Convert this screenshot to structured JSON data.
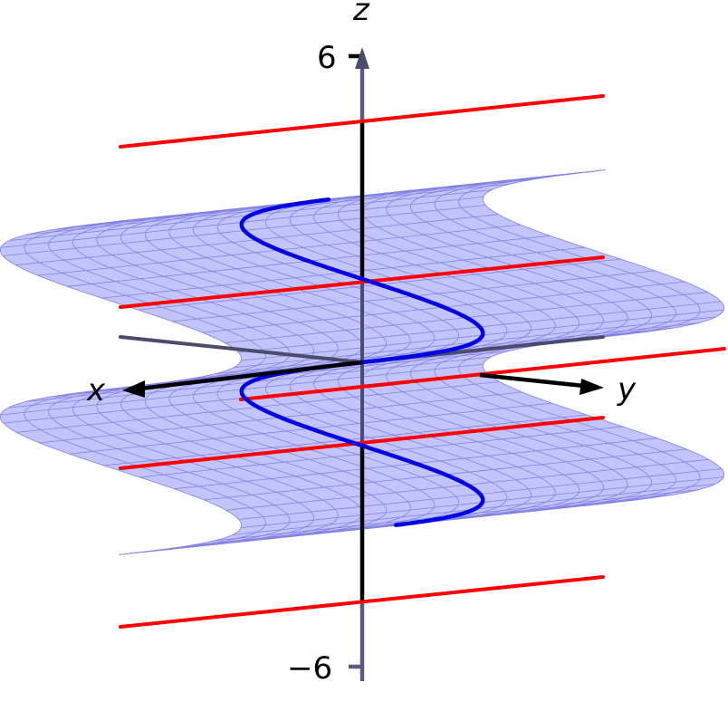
{
  "axes": {
    "x_label": "x",
    "y_label": "y",
    "z_label": "z",
    "z_ticks": [
      "6",
      "−6"
    ]
  },
  "colors": {
    "surface_fill": "#c4c4fc",
    "surface_mesh": "#8282e6",
    "curve": "#0000e6",
    "rulings": "#ff0000",
    "axis": "#000000"
  }
}
